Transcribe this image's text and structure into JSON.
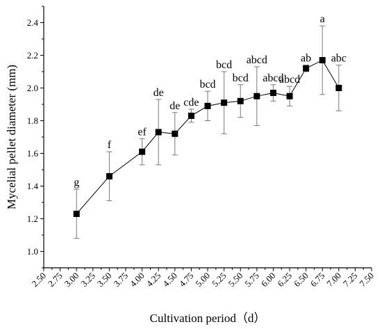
{
  "chart_data": {
    "type": "scatter",
    "xlabel": "Cultivation period（d）",
    "ylabel": "Mycelial pellet diameter (mm)",
    "xlim": [
      2.5,
      7.5
    ],
    "ylim": [
      0.9,
      2.5
    ],
    "x_ticks": [
      "2.50",
      "2.75",
      "3.00",
      "3.25",
      "3.50",
      "3.75",
      "4.00",
      "4.25",
      "4.50",
      "4.75",
      "5.00",
      "5.25",
      "5.50",
      "5.75",
      "6.00",
      "6.25",
      "6.50",
      "6.75",
      "7.00",
      "7.25",
      "7.50"
    ],
    "y_ticks": [
      "1.0",
      "1.2",
      "1.4",
      "1.6",
      "1.8",
      "2.0",
      "2.2",
      "2.4"
    ],
    "grid": false,
    "markers": "filled-square",
    "connected": true,
    "points": [
      {
        "x": 3.0,
        "y": 1.23,
        "err_low": 1.08,
        "err_high": 1.38,
        "label": "g"
      },
      {
        "x": 3.5,
        "y": 1.46,
        "err_low": 1.31,
        "err_high": 1.61,
        "label": "f"
      },
      {
        "x": 4.0,
        "y": 1.61,
        "err_low": 1.53,
        "err_high": 1.69,
        "label": "ef"
      },
      {
        "x": 4.25,
        "y": 1.73,
        "err_low": 1.53,
        "err_high": 1.93,
        "label": "de"
      },
      {
        "x": 4.5,
        "y": 1.72,
        "err_low": 1.59,
        "err_high": 1.85,
        "label": "de"
      },
      {
        "x": 4.75,
        "y": 1.83,
        "err_low": 1.79,
        "err_high": 1.87,
        "label": "cde"
      },
      {
        "x": 5.0,
        "y": 1.89,
        "err_low": 1.8,
        "err_high": 1.98,
        "label": "bcd"
      },
      {
        "x": 5.25,
        "y": 1.91,
        "err_low": 1.72,
        "err_high": 2.1,
        "label": "bcd"
      },
      {
        "x": 5.5,
        "y": 1.92,
        "err_low": 1.82,
        "err_high": 2.02,
        "label": "bcd"
      },
      {
        "x": 5.75,
        "y": 1.95,
        "err_low": 1.77,
        "err_high": 2.13,
        "label": "abcd"
      },
      {
        "x": 6.0,
        "y": 1.97,
        "err_low": 1.92,
        "err_high": 2.02,
        "label": "abcd"
      },
      {
        "x": 6.25,
        "y": 1.95,
        "err_low": 1.89,
        "err_high": 2.01,
        "label": "abcd"
      },
      {
        "x": 6.5,
        "y": 2.12,
        "err_low": 2.1,
        "err_high": 2.14,
        "label": "ab"
      },
      {
        "x": 6.75,
        "y": 2.17,
        "err_low": 1.96,
        "err_high": 2.38,
        "label": "a"
      },
      {
        "x": 7.0,
        "y": 2.0,
        "err_low": 1.86,
        "err_high": 2.14,
        "label": "abc"
      }
    ]
  }
}
